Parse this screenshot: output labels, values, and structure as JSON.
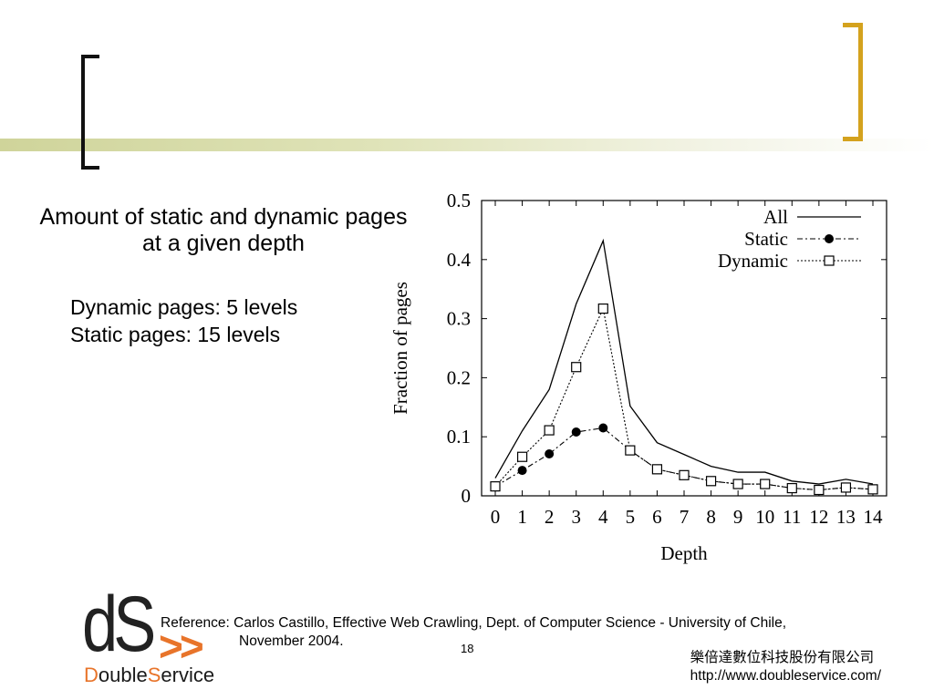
{
  "slide": {
    "title": "Amount of static and dynamic pages at a given depth",
    "points": [
      "Dynamic pages: 5 levels",
      "Static pages: 15 levels"
    ],
    "reference_line1": "Reference: Carlos Castillo, Effective Web Crawling, Dept. of Computer Science - University of Chile,",
    "reference_line2": "November 2004.",
    "page_number": "18",
    "company_name": "樂倍達數位科技股份有限公司",
    "company_url": "http://www.doubleservice.com/"
  },
  "logo": {
    "mark": "dS",
    "arrows": ">>",
    "word_first": "D",
    "word_rest1": "ouble",
    "word_s": "S",
    "word_rest2": "ervice"
  },
  "colors": {
    "accent_gold": "#d4a21e",
    "accent_orange": "#e8742a",
    "bar_olive": "#cfd49a"
  },
  "chart_data": {
    "type": "line",
    "xlabel": "Depth",
    "ylabel": "Fraction of pages",
    "x": [
      0,
      1,
      2,
      3,
      4,
      5,
      6,
      7,
      8,
      9,
      10,
      11,
      12,
      13,
      14
    ],
    "xlim": [
      0,
      14
    ],
    "ylim": [
      0,
      0.5
    ],
    "yticks": [
      "0",
      "0.1",
      "0.2",
      "0.3",
      "0.4",
      "0.5"
    ],
    "grid": false,
    "legend_position": "top-right",
    "series": [
      {
        "name": "All",
        "marker": "none",
        "line": "solid",
        "values": [
          0.03,
          0.11,
          0.18,
          0.325,
          0.432,
          0.152,
          0.09,
          0.07,
          0.05,
          0.04,
          0.04,
          0.025,
          0.02,
          0.028,
          0.02
        ]
      },
      {
        "name": "Static",
        "marker": "filled-circle",
        "line": "dash-dot",
        "values": [
          0.016,
          0.043,
          0.071,
          0.108,
          0.115,
          0.077,
          0.045,
          0.035,
          0.025,
          0.02,
          0.02,
          0.013,
          0.01,
          0.014,
          0.011
        ]
      },
      {
        "name": "Dynamic",
        "marker": "open-square",
        "line": "dotted",
        "values": [
          0.016,
          0.066,
          0.111,
          0.218,
          0.317,
          0.077,
          0.045,
          0.035,
          0.025,
          0.02,
          0.02,
          0.013,
          0.01,
          0.014,
          0.011
        ]
      }
    ]
  }
}
